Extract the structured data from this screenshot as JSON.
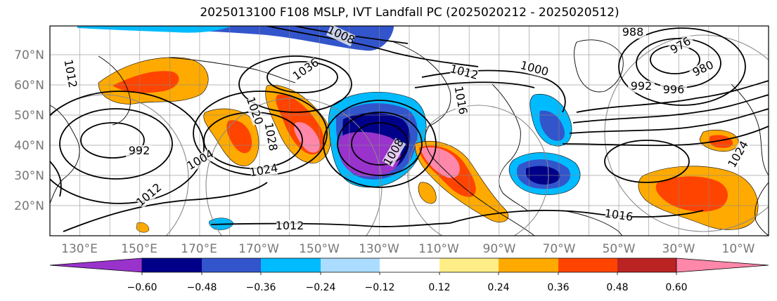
{
  "title": "2025013100 F108 MSLP, IVT Landfall PC (2025020212 - 2025020512)",
  "lat_labels": [
    "70°N",
    "60°N",
    "50°N",
    "40°N",
    "30°N",
    "20°N"
  ],
  "lon_labels": [
    "130°E",
    "150°E",
    "170°E",
    "170°W",
    "150°W",
    "130°W",
    "110°W",
    "90°W",
    "70°W",
    "50°W",
    "30°W",
    "10°W"
  ],
  "contour_labels": [
    "1008",
    "1004",
    "1012",
    "1012",
    "1016",
    "1020",
    "1024",
    "1028",
    "1036",
    "1008",
    "992",
    "988",
    "976",
    "980",
    "992",
    "996",
    "1000",
    "1012",
    "1016",
    "1024",
    "1012"
  ],
  "colorbar": {
    "tick_labels": [
      "−0.60",
      "−0.48",
      "−0.36",
      "−0.24",
      "−0.12",
      "0.12",
      "0.24",
      "0.36",
      "0.48",
      "0.60"
    ],
    "colors": [
      "#9933cc",
      "#000088",
      "#3355cc",
      "#00bbff",
      "#aaddff",
      "#ffffff",
      "#ffee88",
      "#ffaa00",
      "#ff4400",
      "#bb2222",
      "#ff88aa"
    ]
  }
}
